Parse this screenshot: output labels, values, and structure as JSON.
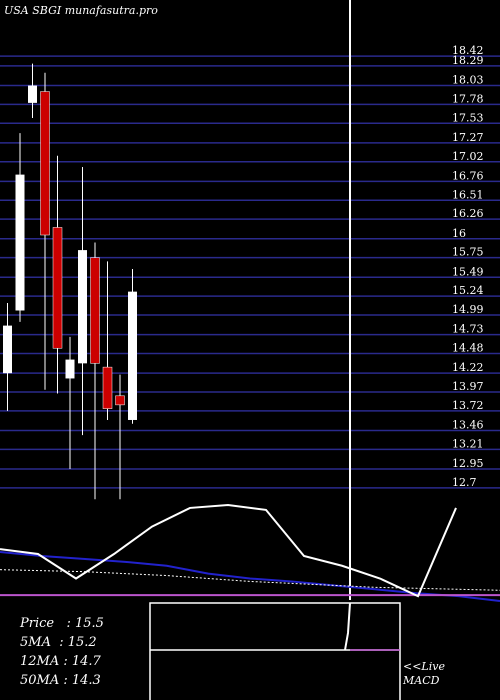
{
  "header": {
    "title": "USA SBGI munafasutra.pro"
  },
  "chart_data": {
    "type": "candlestick",
    "ylim": [
      12.54,
      18.58
    ],
    "price_axis_ticks": [
      "18.42",
      "18.29",
      "18.03",
      "17.78",
      "17.53",
      "17.27",
      "17.02",
      "16.76",
      "16.51",
      "16.26",
      "16",
      "15.75",
      "15.49",
      "15.24",
      "14.99",
      "14.73",
      "14.48",
      "14.22",
      "13.97",
      "13.72",
      "13.46",
      "13.21",
      "12.95",
      "12.7"
    ],
    "candles": [
      {
        "open": 14.22,
        "close": 14.85,
        "high": 15.15,
        "low": 13.72,
        "color": "white"
      },
      {
        "open": 15.05,
        "close": 16.85,
        "high": 17.4,
        "low": 14.9,
        "color": "white"
      },
      {
        "open": 17.8,
        "close": 18.03,
        "high": 18.32,
        "low": 17.6,
        "color": "white"
      },
      {
        "open": 17.95,
        "close": 16.05,
        "high": 18.2,
        "low": 14.0,
        "color": "red"
      },
      {
        "open": 16.15,
        "close": 14.55,
        "high": 17.1,
        "low": 13.95,
        "color": "red"
      },
      {
        "open": 14.4,
        "close": 14.15,
        "high": 14.7,
        "low": 12.95,
        "color": "white"
      },
      {
        "open": 14.35,
        "close": 15.85,
        "high": 16.95,
        "low": 13.4,
        "color": "white"
      },
      {
        "open": 15.75,
        "close": 14.35,
        "high": 15.95,
        "low": 12.55,
        "color": "red"
      },
      {
        "open": 14.3,
        "close": 13.75,
        "high": 15.7,
        "low": 13.6,
        "color": "red"
      },
      {
        "open": 13.92,
        "close": 13.8,
        "high": 14.2,
        "low": 12.55,
        "color": "red"
      },
      {
        "open": 13.6,
        "close": 15.3,
        "high": 15.6,
        "low": 13.55,
        "color": "white"
      }
    ],
    "indicator_line": [
      0.55,
      0.5,
      0.25,
      0.5,
      0.78,
      0.97,
      1.0,
      0.95,
      0.48,
      0.38,
      0.25,
      0.07,
      0.97
    ],
    "indicator_ma": [
      0.52,
      0.48,
      0.45,
      0.42,
      0.38,
      0.3,
      0.25,
      0.22,
      0.18,
      0.14,
      0.1,
      0.07,
      0.02
    ],
    "indicator_signal": [
      0.34,
      0.33,
      0.32,
      0.3,
      0.28,
      0.25,
      0.22,
      0.2,
      0.18,
      0.16,
      0.15,
      0.14,
      0.13
    ],
    "indicator_purple": [
      0.08,
      0.08,
      0.08,
      0.08,
      0.08,
      0.08,
      0.08,
      0.08,
      0.08,
      0.08,
      0.08,
      0.08,
      0.08
    ],
    "macd_signal": [
      0.62,
      0.6
    ],
    "colors": {
      "up": "#ffffff",
      "down": "#cc0000",
      "grid": "#2a2a8c",
      "ma": "#2222cc",
      "purple": "#bb55cc"
    }
  },
  "stats": [
    "Price   : 15.5",
    "5MA  : 15.2",
    "12MA : 14.7",
    "50MA : 14.3"
  ],
  "live_label": "<<Live",
  "macd_label": "MACD"
}
